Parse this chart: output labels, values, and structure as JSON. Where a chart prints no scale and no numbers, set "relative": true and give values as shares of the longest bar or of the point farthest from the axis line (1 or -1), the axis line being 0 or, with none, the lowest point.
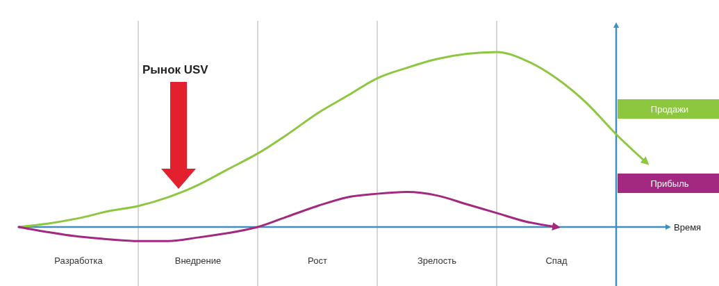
{
  "chart_data": {
    "type": "line",
    "relative": true,
    "xlabel": "Время",
    "categories": [
      null,
      null,
      "Разработка",
      null,
      null,
      null,
      "Внедрение",
      null,
      null,
      null,
      "Рост",
      null,
      null,
      null,
      "Зрелость",
      null,
      null,
      null,
      "Спад",
      null,
      null,
      null
    ],
    "series": [
      {
        "name": "Продажи",
        "color": "#8dc63f",
        "values": [
          0,
          0.02,
          0.05,
          0.09,
          0.12,
          0.17,
          0.24,
          0.33,
          0.42,
          0.53,
          0.65,
          0.75,
          0.85,
          0.91,
          0.96,
          0.99,
          1,
          0.95,
          0.85,
          0.71,
          0.53,
          0.37
        ]
      },
      {
        "name": "Прибыль",
        "color": "#a3287f",
        "values": [
          0,
          -0.03,
          -0.055,
          -0.07,
          -0.08,
          -0.08,
          -0.06,
          -0.035,
          0,
          0.06,
          0.12,
          0.17,
          0.19,
          0.2,
          0.18,
          0.13,
          0.08,
          0.03,
          0,
          null,
          null,
          null
        ]
      }
    ],
    "annotations": [
      "Рынок USV"
    ],
    "ref_lines": [
      {
        "axis": "y",
        "value": 0,
        "color": "#3f8fc0"
      }
    ],
    "grid": "x",
    "legend": "right",
    "marker": "none",
    "line_style": "solid"
  }
}
